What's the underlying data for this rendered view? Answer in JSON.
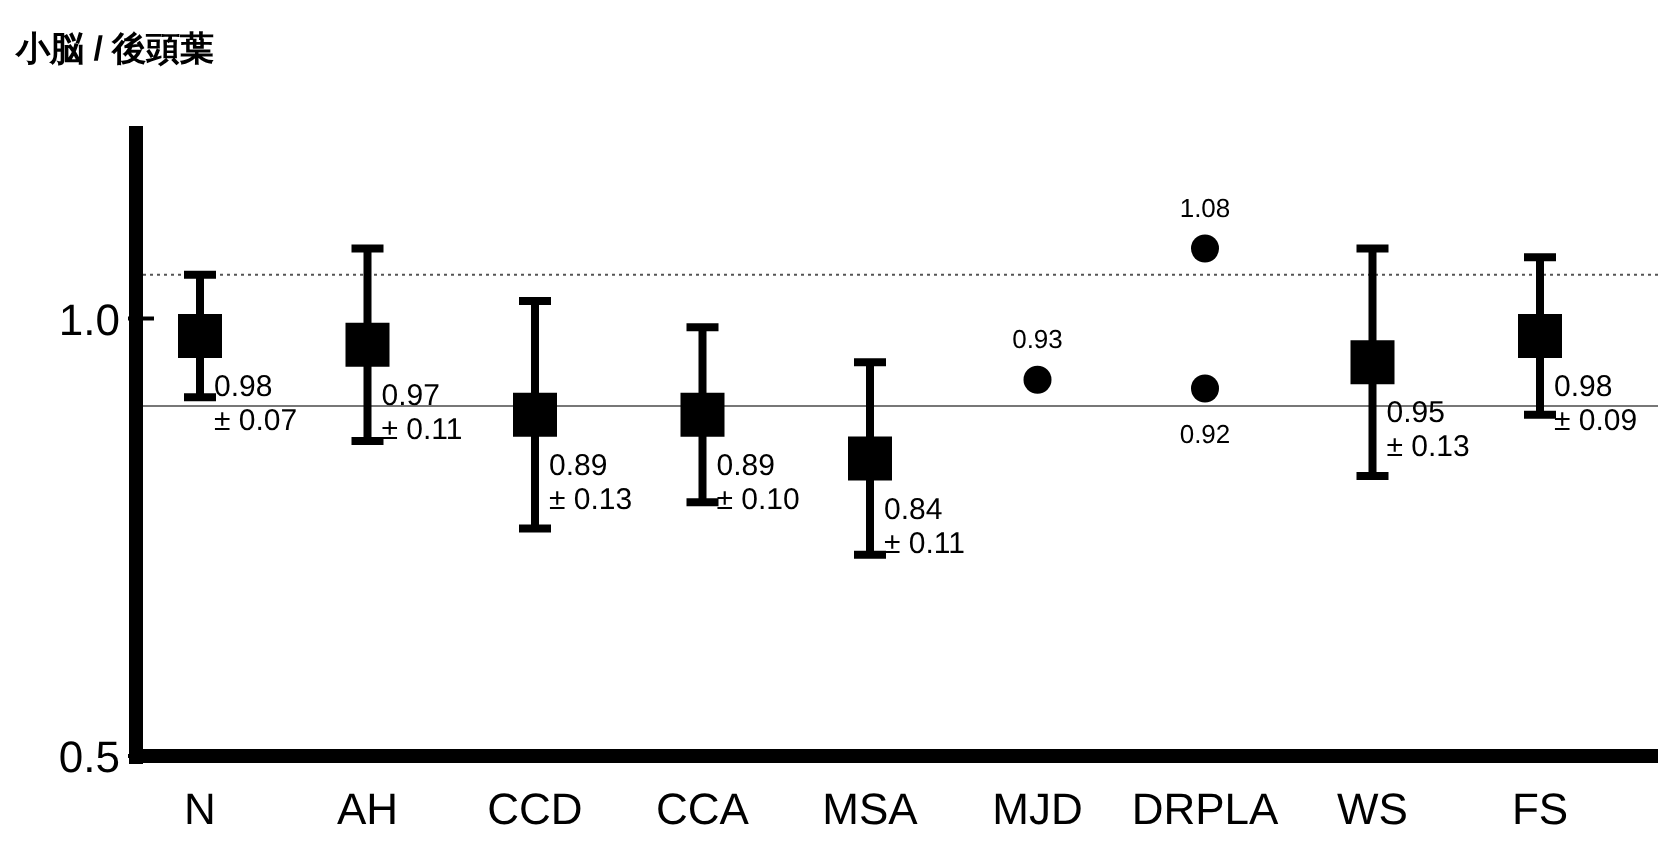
{
  "chart_data": {
    "type": "scatter",
    "title": "小脳 / 後頭葉",
    "categories": [
      "N",
      "AH",
      "CCD",
      "CCA",
      "MSA",
      "MJD",
      "DRPLA",
      "WS",
      "FS"
    ],
    "ylim": [
      0.5,
      1.22
    ],
    "yticks": [
      {
        "value": 1.0,
        "label": "1.0"
      },
      {
        "value": 0.5,
        "label": "0.5"
      }
    ],
    "series": [
      {
        "color": "#000000",
        "marker": "square",
        "values": [
          0.98,
          0.97,
          0.89,
          0.89,
          0.84,
          null,
          null,
          0.95,
          0.98
        ],
        "errors": [
          0.07,
          0.11,
          0.13,
          0.1,
          0.11,
          null,
          null,
          0.13,
          0.09
        ],
        "value_labels": [
          "0.98 ± 0.07",
          "0.97 ± 0.11",
          "0.89 ± 0.13",
          "0.89 ± 0.10",
          "0.84 ± 0.11",
          null,
          null,
          "0.95 ± 0.13",
          "0.98 ± 0.09"
        ]
      },
      {
        "color": "#000000",
        "marker": "circle",
        "x": [
          "MJD",
          "DRPLA",
          "DRPLA"
        ],
        "values": [
          0.93,
          1.08,
          0.92
        ],
        "value_labels": [
          "0.93",
          "1.08",
          "0.92"
        ]
      }
    ],
    "ref_lines": [
      {
        "axis": "y",
        "value": 1.05,
        "color": "#555555",
        "line_style": "dotted"
      },
      {
        "axis": "y",
        "value": 0.9,
        "color": "#777777",
        "line_style": "solid"
      }
    ]
  }
}
